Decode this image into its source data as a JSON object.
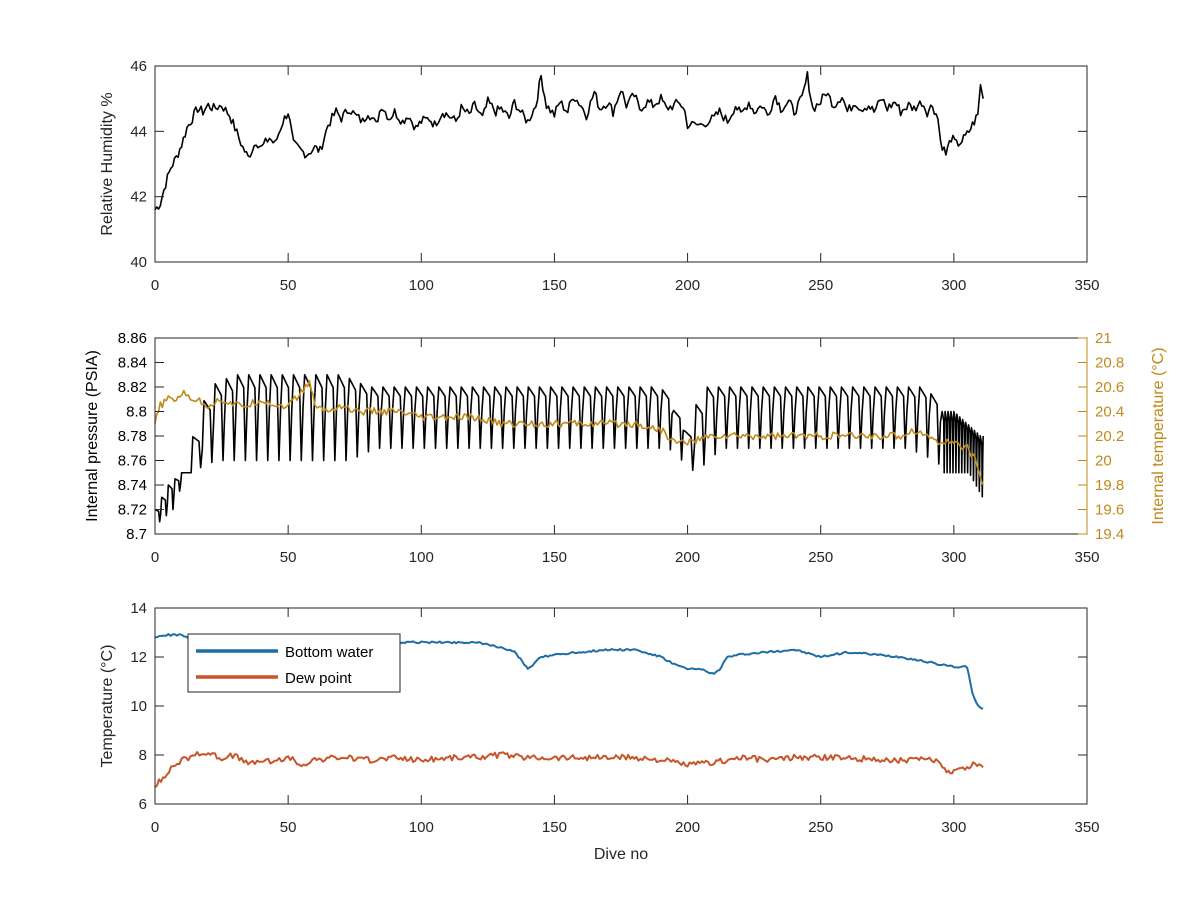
{
  "figure": {
    "xlabel": "Dive no"
  },
  "chart_data": [
    {
      "type": "line",
      "xlim": [
        0,
        350
      ],
      "ylim": [
        40,
        46
      ],
      "xticks": [
        0,
        50,
        100,
        150,
        200,
        250,
        300,
        350
      ],
      "yticks": [
        40,
        42,
        44,
        46
      ],
      "xtick_labels": [
        "0",
        "50",
        "100",
        "150",
        "200",
        "250",
        "300",
        "350"
      ],
      "ytick_labels": [
        "40",
        "42",
        "44",
        "46"
      ],
      "ylabel": "Relative Humidity %",
      "grid": false,
      "series": [
        {
          "color": "#000000",
          "x": [
            0,
            2,
            4,
            6,
            8,
            10,
            12,
            14,
            16,
            18,
            20,
            22,
            25,
            28,
            30,
            33,
            35,
            38,
            40,
            43,
            45,
            48,
            50,
            52,
            55,
            57,
            60,
            62,
            65,
            68,
            70,
            73,
            75,
            78,
            80,
            83,
            85,
            88,
            90,
            93,
            95,
            98,
            100,
            103,
            105,
            108,
            110,
            113,
            115,
            118,
            120,
            123,
            125,
            128,
            130,
            133,
            135,
            138,
            140,
            143,
            145,
            147,
            150,
            152,
            155,
            157,
            160,
            162,
            165,
            167,
            170,
            172,
            175,
            177,
            180,
            182,
            185,
            187,
            190,
            192,
            195,
            197,
            199,
            200,
            205,
            210,
            212,
            215,
            218,
            220,
            223,
            225,
            228,
            230,
            233,
            235,
            238,
            240,
            243,
            245,
            247,
            250,
            252,
            255,
            258,
            260,
            263,
            265,
            268,
            270,
            273,
            275,
            278,
            280,
            283,
            285,
            288,
            290,
            292,
            294,
            295,
            297,
            299,
            301,
            303,
            305,
            307,
            309,
            310,
            311
          ],
          "y": [
            41.6,
            41.8,
            42.4,
            42.9,
            43.2,
            43.6,
            44.1,
            44.4,
            44.7,
            44.6,
            44.8,
            44.7,
            44.8,
            44.5,
            44.1,
            43.5,
            43.2,
            43.7,
            43.5,
            43.8,
            43.6,
            44.3,
            44.6,
            43.6,
            43.4,
            43.3,
            43.5,
            43.4,
            44.2,
            44.6,
            44.4,
            44.7,
            44.5,
            44.3,
            44.6,
            44.2,
            44.8,
            44.4,
            44.6,
            44.3,
            44.5,
            44.1,
            44.3,
            44.4,
            44.2,
            44.6,
            44.5,
            44.3,
            44.7,
            44.5,
            44.8,
            44.4,
            44.9,
            44.6,
            44.7,
            44.4,
            44.9,
            44.5,
            44.3,
            44.8,
            45.7,
            44.8,
            44.5,
            44.9,
            44.6,
            45.1,
            44.8,
            44.5,
            45.2,
            44.7,
            44.9,
            44.6,
            45.3,
            44.8,
            45.1,
            44.7,
            44.9,
            44.8,
            45.0,
            44.7,
            44.8,
            44.9,
            44.6,
            44.2,
            44.2,
            44.4,
            44.6,
            44.3,
            44.8,
            44.5,
            44.9,
            44.6,
            44.8,
            44.5,
            45.1,
            44.7,
            44.9,
            44.6,
            45.0,
            45.7,
            44.7,
            44.9,
            45.2,
            44.8,
            45.1,
            44.6,
            44.9,
            44.7,
            44.8,
            44.6,
            45.0,
            44.7,
            44.9,
            44.6,
            44.8,
            44.7,
            44.9,
            44.6,
            44.8,
            44.4,
            43.7,
            43.3,
            43.8,
            43.6,
            43.7,
            43.9,
            44.2,
            44.5,
            45.4,
            45.0
          ]
        }
      ]
    },
    {
      "type": "line",
      "xlim": [
        0,
        350
      ],
      "ylim": [
        8.7,
        8.86
      ],
      "ylim_right": [
        19.4,
        21
      ],
      "xticks": [
        0,
        50,
        100,
        150,
        200,
        250,
        300,
        350
      ],
      "yticks": [
        8.7,
        8.72,
        8.74,
        8.76,
        8.78,
        8.8,
        8.82,
        8.84,
        8.86
      ],
      "yticks_right": [
        19.4,
        19.6,
        19.8,
        20,
        20.2,
        20.4,
        20.6,
        20.8,
        21
      ],
      "xtick_labels": [
        "0",
        "50",
        "100",
        "150",
        "200",
        "250",
        "300",
        "350"
      ],
      "ytick_labels": [
        "8.7",
        "8.72",
        "8.74",
        "8.76",
        "8.78",
        "8.8",
        "8.82",
        "8.84",
        "8.86"
      ],
      "ytick_labels_right": [
        "19.4",
        "19.6",
        "19.8",
        "20",
        "20.2",
        "20.4",
        "20.6",
        "20.8",
        "21"
      ],
      "ylabel": "Internal pressure (PSIA)",
      "ylabel_right": "Internal temperature (°C)",
      "right_axis_color": "#c08a1a",
      "grid": false,
      "series": [
        {
          "axis": "left",
          "color": "#000000",
          "pattern": "oscillating between cycle highs and lows",
          "x": [
            0,
            5,
            10,
            20,
            30,
            40,
            50,
            60,
            70,
            80,
            90,
            100,
            110,
            120,
            130,
            140,
            150,
            160,
            170,
            180,
            190,
            200,
            205,
            210,
            220,
            230,
            240,
            250,
            260,
            270,
            280,
            290,
            295,
            300,
            305,
            310,
            311
          ],
          "highs": [
            8.72,
            8.74,
            8.75,
            8.82,
            8.83,
            8.83,
            8.83,
            8.83,
            8.83,
            8.82,
            8.82,
            8.82,
            8.82,
            8.82,
            8.82,
            8.82,
            8.82,
            8.82,
            8.82,
            8.82,
            8.82,
            8.78,
            8.82,
            8.82,
            8.82,
            8.82,
            8.82,
            8.82,
            8.82,
            8.82,
            8.82,
            8.82,
            8.8,
            8.8,
            8.79,
            8.78,
            8.78
          ],
          "lows": [
            8.71,
            8.72,
            8.75,
            8.76,
            8.76,
            8.76,
            8.76,
            8.76,
            8.76,
            8.77,
            8.77,
            8.77,
            8.77,
            8.77,
            8.77,
            8.77,
            8.77,
            8.77,
            8.77,
            8.77,
            8.77,
            8.75,
            8.76,
            8.77,
            8.77,
            8.77,
            8.77,
            8.77,
            8.77,
            8.77,
            8.77,
            8.76,
            8.75,
            8.75,
            8.75,
            8.73,
            8.73
          ],
          "cycle_period": 4.2
        },
        {
          "axis": "right",
          "color": "#c08a1a",
          "x": [
            0,
            2,
            5,
            8,
            10,
            15,
            20,
            25,
            30,
            35,
            40,
            45,
            50,
            55,
            58,
            60,
            65,
            70,
            75,
            80,
            90,
            100,
            110,
            120,
            130,
            140,
            150,
            160,
            170,
            180,
            190,
            195,
            200,
            210,
            220,
            230,
            240,
            250,
            260,
            270,
            280,
            285,
            290,
            295,
            300,
            305,
            308,
            311
          ],
          "y": [
            20.3,
            20.45,
            20.5,
            20.5,
            20.55,
            20.5,
            20.45,
            20.5,
            20.45,
            20.45,
            20.5,
            20.45,
            20.45,
            20.55,
            20.65,
            20.45,
            20.4,
            20.45,
            20.4,
            20.4,
            20.4,
            20.35,
            20.35,
            20.35,
            20.3,
            20.3,
            20.3,
            20.3,
            20.3,
            20.3,
            20.25,
            20.15,
            20.15,
            20.2,
            20.2,
            20.2,
            20.2,
            20.2,
            20.2,
            20.2,
            20.2,
            20.25,
            20.2,
            20.15,
            20.15,
            20.1,
            20.0,
            19.8
          ]
        }
      ]
    },
    {
      "type": "line",
      "xlim": [
        0,
        350
      ],
      "ylim": [
        6,
        14
      ],
      "xticks": [
        0,
        50,
        100,
        150,
        200,
        250,
        300,
        350
      ],
      "yticks": [
        6,
        8,
        10,
        12,
        14
      ],
      "xtick_labels": [
        "0",
        "50",
        "100",
        "150",
        "200",
        "250",
        "300",
        "350"
      ],
      "ytick_labels": [
        "6",
        "8",
        "10",
        "12",
        "14"
      ],
      "ylabel": "Temperature (°C)",
      "xlabel": "Dive no",
      "legend_placement": "top-left",
      "grid": false,
      "series": [
        {
          "name": "Bottom water",
          "color": "#1f6ea3",
          "x": [
            0,
            5,
            10,
            15,
            20,
            30,
            40,
            50,
            60,
            70,
            80,
            90,
            100,
            110,
            120,
            130,
            135,
            138,
            140,
            145,
            150,
            160,
            170,
            180,
            190,
            195,
            200,
            205,
            210,
            212,
            215,
            220,
            230,
            240,
            250,
            260,
            270,
            280,
            290,
            300,
            305,
            307,
            309,
            311
          ],
          "y": [
            12.8,
            12.9,
            12.9,
            12.6,
            12.7,
            12.8,
            12.8,
            12.6,
            12.5,
            12.6,
            12.5,
            12.6,
            12.6,
            12.6,
            12.6,
            12.4,
            12.2,
            11.8,
            11.5,
            12.0,
            12.1,
            12.2,
            12.3,
            12.3,
            12.0,
            11.7,
            11.5,
            11.5,
            11.3,
            11.5,
            12.0,
            12.1,
            12.2,
            12.3,
            12.0,
            12.2,
            12.1,
            12.0,
            11.8,
            11.6,
            11.6,
            10.5,
            10.0,
            9.9
          ]
        },
        {
          "name": "Dew point",
          "color": "#c8552a",
          "x": [
            0,
            3,
            6,
            10,
            15,
            20,
            25,
            30,
            35,
            40,
            45,
            50,
            55,
            60,
            70,
            80,
            90,
            100,
            110,
            120,
            130,
            140,
            150,
            160,
            170,
            180,
            190,
            200,
            210,
            220,
            230,
            240,
            250,
            260,
            270,
            280,
            290,
            295,
            298,
            300,
            305,
            308,
            311
          ],
          "y": [
            6.8,
            7.0,
            7.5,
            7.8,
            8.0,
            8.1,
            7.9,
            8.0,
            7.6,
            7.8,
            7.7,
            7.9,
            7.6,
            7.8,
            7.9,
            7.8,
            7.9,
            7.8,
            7.9,
            7.9,
            8.0,
            7.9,
            7.9,
            7.9,
            7.9,
            7.9,
            7.8,
            7.6,
            7.7,
            7.9,
            7.8,
            7.9,
            7.9,
            7.9,
            7.8,
            7.8,
            7.8,
            7.7,
            7.3,
            7.4,
            7.5,
            7.7,
            7.5
          ]
        }
      ]
    }
  ]
}
